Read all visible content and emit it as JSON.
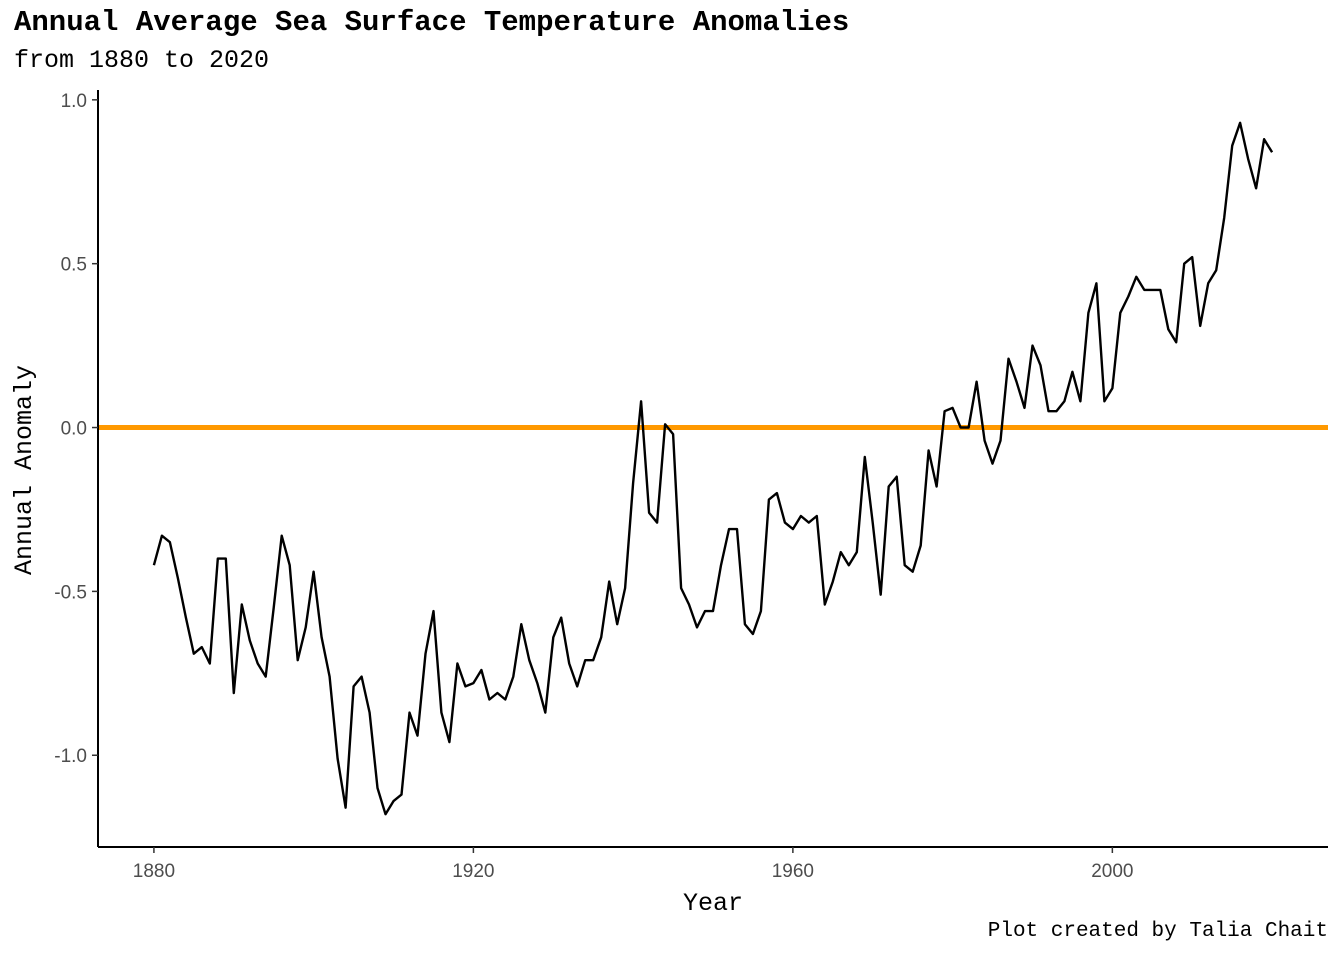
{
  "chart_data": {
    "type": "line",
    "title": "Annual Average Sea Surface Temperature Anomalies",
    "subtitle": "from 1880 to 2020",
    "xlabel": "Year",
    "ylabel": "Annual Anomaly",
    "caption": "Plot created by Talia Chait",
    "xlim": [
      1873,
      2027
    ],
    "ylim": [
      -1.28,
      1.03
    ],
    "x_ticks": [
      1880,
      1920,
      1960,
      2000
    ],
    "y_ticks": [
      1.0,
      0.5,
      0.0,
      -0.5,
      -1.0
    ],
    "y_tick_labels": [
      "1.0",
      "0.5",
      "0.0",
      "-0.5",
      "-1.0"
    ],
    "grid": false,
    "reference_line": {
      "y": 0.0,
      "color": "#ff9900"
    },
    "series": [
      {
        "color": "#000000",
        "x": [
          1880,
          1881,
          1882,
          1883,
          1884,
          1885,
          1886,
          1887,
          1888,
          1889,
          1890,
          1891,
          1892,
          1893,
          1894,
          1895,
          1896,
          1897,
          1898,
          1899,
          1900,
          1901,
          1902,
          1903,
          1904,
          1905,
          1906,
          1907,
          1908,
          1909,
          1910,
          1911,
          1912,
          1913,
          1914,
          1915,
          1916,
          1917,
          1918,
          1919,
          1920,
          1921,
          1922,
          1923,
          1924,
          1925,
          1926,
          1927,
          1928,
          1929,
          1930,
          1931,
          1932,
          1933,
          1934,
          1935,
          1936,
          1937,
          1938,
          1939,
          1940,
          1941,
          1942,
          1943,
          1944,
          1945,
          1946,
          1947,
          1948,
          1949,
          1950,
          1951,
          1952,
          1953,
          1954,
          1955,
          1956,
          1957,
          1958,
          1959,
          1960,
          1961,
          1962,
          1963,
          1964,
          1965,
          1966,
          1967,
          1968,
          1969,
          1970,
          1971,
          1972,
          1973,
          1974,
          1975,
          1976,
          1977,
          1978,
          1979,
          1980,
          1981,
          1982,
          1983,
          1984,
          1985,
          1986,
          1987,
          1988,
          1989,
          1990,
          1991,
          1992,
          1993,
          1994,
          1995,
          1996,
          1997,
          1998,
          1999,
          2000,
          2001,
          2002,
          2003,
          2004,
          2005,
          2006,
          2007,
          2008,
          2009,
          2010,
          2011,
          2012,
          2013,
          2014,
          2015,
          2016,
          2017,
          2018,
          2019,
          2020
        ],
        "values": [
          -0.42,
          -0.33,
          -0.35,
          -0.46,
          -0.58,
          -0.69,
          -0.67,
          -0.72,
          -0.4,
          -0.4,
          -0.81,
          -0.54,
          -0.65,
          -0.72,
          -0.76,
          -0.55,
          -0.33,
          -0.42,
          -0.71,
          -0.61,
          -0.44,
          -0.64,
          -0.76,
          -1.01,
          -1.16,
          -0.79,
          -0.76,
          -0.87,
          -1.1,
          -1.18,
          -1.14,
          -1.12,
          -0.87,
          -0.94,
          -0.69,
          -0.56,
          -0.87,
          -0.96,
          -0.72,
          -0.79,
          -0.78,
          -0.74,
          -0.83,
          -0.81,
          -0.83,
          -0.76,
          -0.6,
          -0.71,
          -0.78,
          -0.87,
          -0.64,
          -0.58,
          -0.72,
          -0.79,
          -0.71,
          -0.71,
          -0.64,
          -0.47,
          -0.6,
          -0.49,
          -0.17,
          0.08,
          -0.26,
          -0.29,
          0.01,
          -0.02,
          -0.49,
          -0.54,
          -0.61,
          -0.56,
          -0.56,
          -0.42,
          -0.31,
          -0.31,
          -0.6,
          -0.63,
          -0.56,
          -0.22,
          -0.2,
          -0.29,
          -0.31,
          -0.27,
          -0.29,
          -0.27,
          -0.54,
          -0.47,
          -0.38,
          -0.42,
          -0.38,
          -0.09,
          -0.29,
          -0.51,
          -0.18,
          -0.15,
          -0.42,
          -0.44,
          -0.36,
          -0.07,
          -0.18,
          0.05,
          0.06,
          0.0,
          0.0,
          0.14,
          -0.04,
          -0.11,
          -0.04,
          0.21,
          0.14,
          0.06,
          0.25,
          0.19,
          0.05,
          0.05,
          0.08,
          0.17,
          0.08,
          0.35,
          0.44,
          0.08,
          0.12,
          0.35,
          0.4,
          0.46,
          0.42,
          0.42,
          0.42,
          0.3,
          0.26,
          0.5,
          0.52,
          0.31,
          0.44,
          0.48,
          0.64,
          0.86,
          0.93,
          0.82,
          0.73,
          0.88,
          0.84
        ]
      }
    ]
  }
}
